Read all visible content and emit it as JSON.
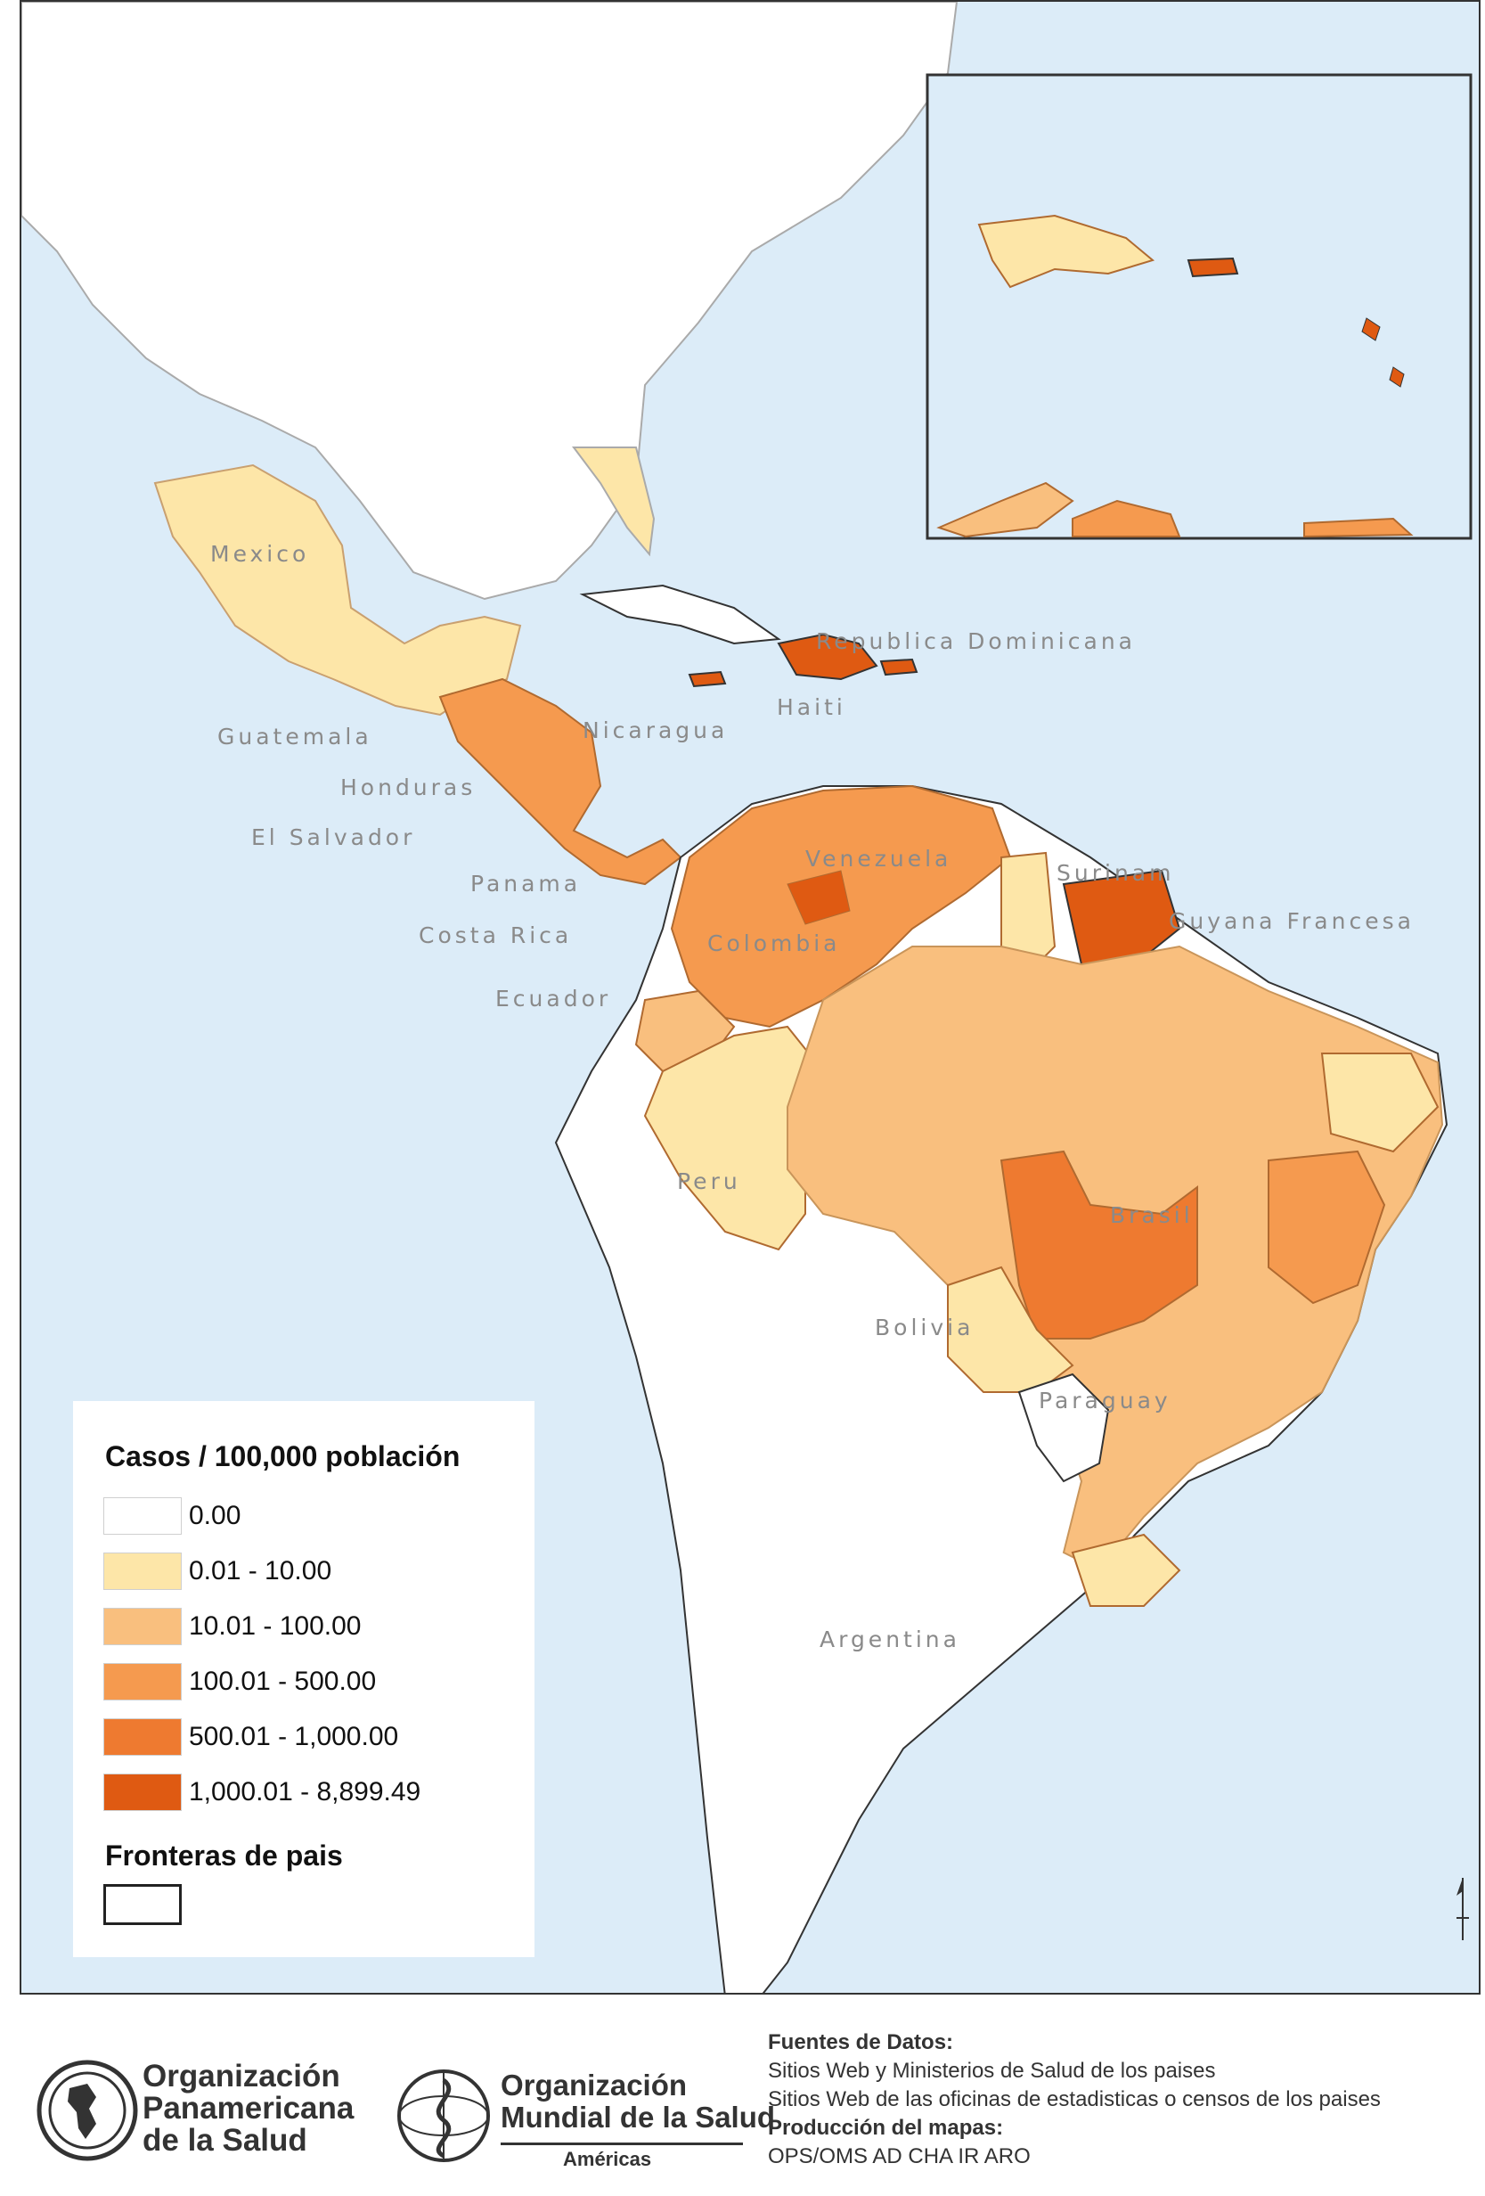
{
  "map": {
    "country_labels": [
      {
        "text": "Mexico",
        "key": "mexico"
      },
      {
        "text": "Guatemala",
        "key": "guatemala"
      },
      {
        "text": "Honduras",
        "key": "honduras"
      },
      {
        "text": "El Salvador",
        "key": "el_salvador"
      },
      {
        "text": "Nicaragua",
        "key": "nicaragua"
      },
      {
        "text": "Panama",
        "key": "panama"
      },
      {
        "text": "Costa Rica",
        "key": "costa_rica"
      },
      {
        "text": "Ecuador",
        "key": "ecuador"
      },
      {
        "text": "Republica Dominicana",
        "key": "rep_dominicana"
      },
      {
        "text": "Haiti",
        "key": "haiti"
      },
      {
        "text": "Venezuela",
        "key": "venezuela"
      },
      {
        "text": "Colombia",
        "key": "colombia"
      },
      {
        "text": "Surinam",
        "key": "surinam"
      },
      {
        "text": "Guyana Francesa",
        "key": "guyana_francesa"
      },
      {
        "text": "Peru",
        "key": "peru"
      },
      {
        "text": "Brasil",
        "key": "brasil"
      },
      {
        "text": "Bolivia",
        "key": "bolivia"
      },
      {
        "text": "Paraguay",
        "key": "paraguay"
      },
      {
        "text": "Argentina",
        "key": "argentina"
      }
    ],
    "ocean_color": "#dcecf8",
    "land_color": "#ffffff"
  },
  "legend": {
    "title": "Casos / 100,000 población",
    "classes": [
      {
        "label": "0.00",
        "color": "#ffffff"
      },
      {
        "label": "0.01 - 10.00",
        "color": "#fde6a8"
      },
      {
        "label": "10.01 - 100.00",
        "color": "#f9bf7e"
      },
      {
        "label": "100.01 - 500.00",
        "color": "#f59a4f"
      },
      {
        "label": "500.01 - 1,000.00",
        "color": "#ee7a30"
      },
      {
        "label": "1,000.01 - 8,899.49",
        "color": "#df5a12"
      }
    ],
    "border_title": "Fronteras de pais"
  },
  "footer": {
    "paho_name": [
      "Organización",
      "Panamericana",
      "de la Salud"
    ],
    "who_name": [
      "Organización",
      "Mundial de la Salud"
    ],
    "who_sub": "Américas",
    "sources_title": "Fuentes de Datos:",
    "sources": [
      "Sitios Web y Ministerios de Salud de los paises",
      "Sitios Web de las oficinas de estadisticas o censos de los paises"
    ],
    "production_title": "Producción del mapas:",
    "production": "OPS/OMS AD CHA IR ARO"
  }
}
